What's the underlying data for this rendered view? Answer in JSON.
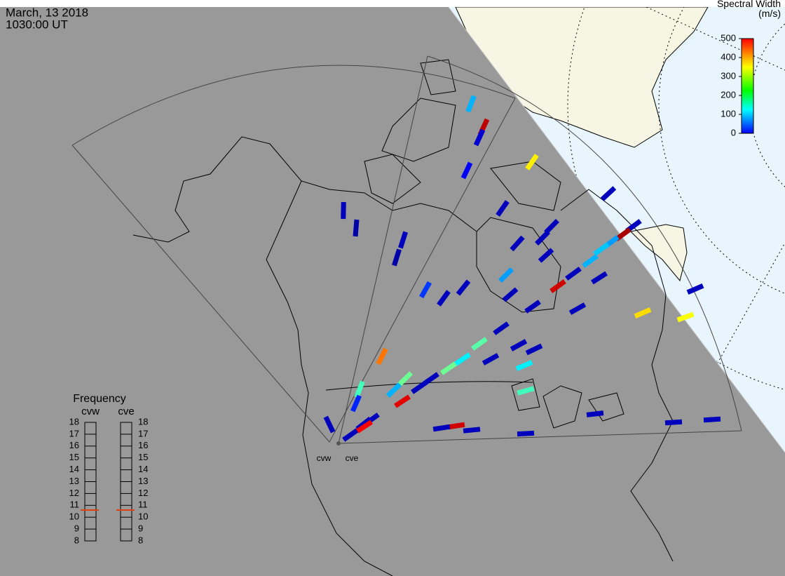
{
  "header": {
    "date": "March, 13 2018",
    "time": "1030:00 UT"
  },
  "colorbar": {
    "title": "Spectral Width (m/s)",
    "lim": [
      0,
      500
    ],
    "ticks": [
      0,
      100,
      200,
      300,
      400,
      500
    ]
  },
  "frequency": {
    "title": "Frequency",
    "lim": [
      8,
      18
    ],
    "ticks": [
      8,
      9,
      10,
      11,
      12,
      13,
      14,
      15,
      16,
      17,
      18
    ],
    "radars": [
      {
        "name": "cvw",
        "value": 10.6
      },
      {
        "name": "cve",
        "value": 10.6
      }
    ]
  },
  "echoes": [
    150,
    470,
    40,
    60,
    320,
    30,
    30,
    20,
    20,
    30,
    30,
    30,
    30,
    30,
    30,
    480,
    140,
    160,
    150,
    30,
    140,
    460,
    30,
    30,
    30,
    330,
    310,
    90,
    30,
    30,
    30,
    30,
    30,
    30,
    30,
    30,
    230,
    180,
    240,
    180,
    220,
    380,
    240,
    150,
    450,
    460,
    30,
    30,
    30,
    30,
    30,
    30,
    30,
    30,
    30,
    30,
    440,
    220,
    80,
    30,
    30,
    30
  ]
}
